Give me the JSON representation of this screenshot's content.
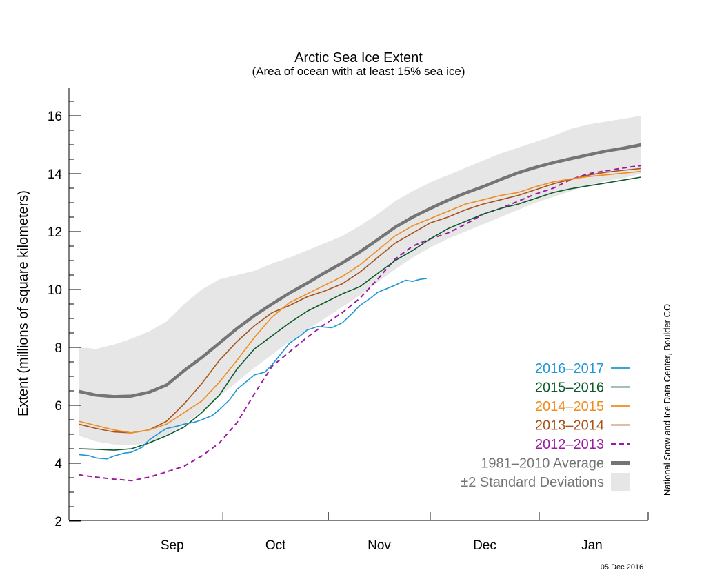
{
  "chart_data": {
    "type": "line",
    "title": "Arctic Sea Ice Extent",
    "subtitle": "(Area of ocean with at least 15% sea ice)",
    "ylabel": "Extent (millions of square kilometers)",
    "xlabel": "",
    "ylim": [
      2,
      17
    ],
    "yticks": [
      2,
      4,
      6,
      8,
      10,
      12,
      14,
      16
    ],
    "yticklabels": [
      "2",
      "4",
      "6",
      "8",
      "10",
      "12",
      "14",
      "16"
    ],
    "months": [
      "Sep",
      "Oct",
      "Nov",
      "Dec",
      "Jan"
    ],
    "x_unit": "day of season (0 = Aug 20)",
    "month_boundaries_day": [
      11,
      41,
      71,
      100,
      131,
      161
    ],
    "grid": false,
    "legend_position": "lower-right",
    "average": {
      "name": "1981–2010 Average",
      "color": "#757575",
      "x": [
        0,
        5,
        10,
        15,
        20,
        25,
        30,
        35,
        40,
        45,
        50,
        55,
        60,
        65,
        70,
        75,
        80,
        85,
        90,
        95,
        100,
        105,
        110,
        115,
        120,
        125,
        130,
        135,
        140,
        145,
        150,
        155,
        160
      ],
      "y": [
        6.48,
        6.35,
        6.3,
        6.32,
        6.45,
        6.7,
        7.2,
        7.65,
        8.15,
        8.65,
        9.1,
        9.5,
        9.88,
        10.22,
        10.58,
        10.92,
        11.3,
        11.72,
        12.15,
        12.5,
        12.8,
        13.08,
        13.33,
        13.55,
        13.8,
        14.03,
        14.22,
        14.38,
        14.52,
        14.65,
        14.78,
        14.88,
        15.0
      ]
    },
    "stddev_band": {
      "name": "±2 Standard Deviations",
      "color": "#e6e6e6",
      "x": [
        0,
        5,
        10,
        15,
        20,
        25,
        30,
        35,
        40,
        45,
        50,
        55,
        60,
        65,
        70,
        75,
        80,
        85,
        90,
        95,
        100,
        105,
        110,
        115,
        120,
        125,
        130,
        135,
        140,
        145,
        150,
        155,
        160
      ],
      "upper": [
        8.0,
        7.95,
        8.1,
        8.3,
        8.55,
        8.9,
        9.5,
        10.0,
        10.35,
        10.5,
        10.65,
        10.9,
        11.1,
        11.35,
        11.6,
        11.85,
        12.2,
        12.6,
        13.05,
        13.4,
        13.7,
        13.95,
        14.2,
        14.45,
        14.7,
        14.9,
        15.1,
        15.3,
        15.55,
        15.7,
        15.8,
        15.9,
        16.0
      ],
      "lower": [
        4.95,
        4.75,
        4.65,
        4.62,
        4.7,
        4.95,
        5.35,
        5.8,
        6.3,
        6.8,
        7.3,
        7.75,
        8.2,
        8.6,
        9.0,
        9.4,
        9.8,
        10.25,
        10.7,
        11.1,
        11.45,
        11.75,
        12.0,
        12.25,
        12.5,
        12.75,
        13.0,
        13.2,
        13.4,
        13.6,
        13.75,
        13.85,
        14.0
      ]
    },
    "series": [
      {
        "name": "2016–2017",
        "color": "#1e96d6",
        "dashed": false,
        "x": [
          0,
          3,
          5,
          8,
          10,
          13,
          15,
          18,
          20,
          23,
          25,
          28,
          30,
          33,
          35,
          38,
          40,
          43,
          45,
          48,
          50,
          53,
          55,
          58,
          60,
          63,
          65,
          68,
          70,
          72,
          75,
          78,
          80,
          83,
          85,
          88,
          90,
          93,
          95,
          97,
          99
        ],
        "y": [
          4.3,
          4.26,
          4.18,
          4.15,
          4.25,
          4.35,
          4.38,
          4.55,
          4.8,
          5.05,
          5.2,
          5.28,
          5.35,
          5.42,
          5.5,
          5.65,
          5.85,
          6.2,
          6.55,
          6.85,
          7.05,
          7.15,
          7.4,
          7.85,
          8.15,
          8.4,
          8.6,
          8.72,
          8.7,
          8.68,
          8.85,
          9.2,
          9.45,
          9.7,
          9.9,
          10.05,
          10.15,
          10.32,
          10.28,
          10.35,
          10.38
        ]
      },
      {
        "name": "2015–2016",
        "color": "#0d5a2a",
        "dashed": false,
        "x": [
          0,
          5,
          10,
          15,
          20,
          25,
          30,
          35,
          40,
          45,
          50,
          55,
          60,
          65,
          70,
          75,
          80,
          85,
          90,
          95,
          100,
          105,
          110,
          115,
          120,
          125,
          130,
          135,
          140,
          145,
          150,
          155,
          160
        ],
        "y": [
          4.5,
          4.48,
          4.45,
          4.5,
          4.7,
          4.95,
          5.25,
          5.75,
          6.35,
          7.25,
          7.95,
          8.4,
          8.85,
          9.25,
          9.55,
          9.85,
          10.1,
          10.55,
          11.0,
          11.35,
          11.75,
          12.1,
          12.35,
          12.6,
          12.8,
          12.95,
          13.15,
          13.35,
          13.48,
          13.58,
          13.68,
          13.78,
          13.88
        ]
      },
      {
        "name": "2014–2015",
        "color": "#f08c1e",
        "dashed": false,
        "x": [
          0,
          5,
          10,
          15,
          20,
          25,
          30,
          35,
          40,
          45,
          50,
          55,
          60,
          65,
          70,
          75,
          80,
          85,
          90,
          95,
          100,
          105,
          110,
          115,
          120,
          125,
          130,
          135,
          140,
          145,
          150,
          155,
          160
        ],
        "y": [
          5.45,
          5.3,
          5.15,
          5.05,
          5.15,
          5.35,
          5.75,
          6.15,
          6.8,
          7.55,
          8.35,
          9.05,
          9.55,
          9.85,
          10.15,
          10.45,
          10.85,
          11.35,
          11.85,
          12.2,
          12.45,
          12.7,
          12.95,
          13.1,
          13.25,
          13.35,
          13.55,
          13.72,
          13.82,
          13.9,
          13.96,
          14.02,
          14.08
        ]
      },
      {
        "name": "2013–2014",
        "color": "#a8521a",
        "dashed": false,
        "x": [
          0,
          5,
          10,
          15,
          20,
          25,
          30,
          35,
          40,
          45,
          50,
          55,
          60,
          65,
          70,
          75,
          80,
          85,
          90,
          95,
          100,
          105,
          110,
          115,
          120,
          125,
          130,
          135,
          140,
          145,
          150,
          155,
          160
        ],
        "y": [
          5.35,
          5.2,
          5.08,
          5.05,
          5.15,
          5.45,
          6.05,
          6.75,
          7.55,
          8.2,
          8.75,
          9.2,
          9.45,
          9.75,
          9.95,
          10.2,
          10.6,
          11.1,
          11.6,
          11.95,
          12.3,
          12.5,
          12.75,
          12.95,
          13.1,
          13.25,
          13.45,
          13.65,
          13.8,
          13.95,
          14.05,
          14.12,
          14.18
        ]
      },
      {
        "name": "2012–2013",
        "color": "#9a1aa3",
        "dashed": true,
        "x": [
          0,
          5,
          10,
          15,
          20,
          25,
          30,
          35,
          40,
          45,
          50,
          55,
          60,
          65,
          70,
          75,
          80,
          85,
          90,
          95,
          100,
          105,
          110,
          115,
          120,
          125,
          130,
          135,
          140,
          145,
          150,
          155,
          160
        ],
        "y": [
          3.6,
          3.52,
          3.45,
          3.4,
          3.52,
          3.7,
          3.9,
          4.25,
          4.7,
          5.4,
          6.4,
          7.35,
          7.85,
          8.35,
          8.8,
          9.2,
          9.7,
          10.35,
          11.05,
          11.5,
          11.75,
          11.95,
          12.25,
          12.6,
          12.8,
          13.05,
          13.3,
          13.5,
          13.8,
          14.0,
          14.1,
          14.2,
          14.28
        ]
      }
    ]
  },
  "credit": "National Snow and Ice Data Center, Boulder CO",
  "date_stamp": "05 Dec 2016"
}
